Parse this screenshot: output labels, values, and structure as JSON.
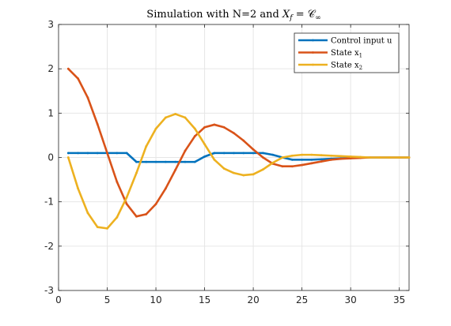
{
  "chart_data": {
    "type": "line",
    "title_prefix": "Simulation with N=2 and ",
    "title_math": "X",
    "title_math_sub": "f",
    "title_math_rest": " = 𝒞",
    "title_math_rest_sub": "∞",
    "xlabel": "",
    "ylabel": "",
    "xlim": [
      0,
      36
    ],
    "ylim": [
      -3,
      3
    ],
    "x_ticks": [
      0,
      5,
      10,
      15,
      20,
      25,
      30,
      35
    ],
    "y_ticks": [
      -3,
      -2,
      -1,
      0,
      1,
      2,
      3
    ],
    "grid": true,
    "legend_position": "top-right",
    "series": [
      {
        "name": "Control input u",
        "name_sub": "",
        "color": "#0072BD",
        "x": [
          1,
          2,
          3,
          4,
          5,
          6,
          7,
          8,
          9,
          10,
          11,
          12,
          13,
          14,
          15,
          16,
          17,
          18,
          19,
          20,
          21,
          22,
          23,
          24,
          25,
          26,
          27,
          28,
          29,
          30,
          31,
          32,
          33,
          34,
          35,
          36
        ],
        "y": [
          0.1,
          0.1,
          0.1,
          0.1,
          0.1,
          0.1,
          0.1,
          -0.1,
          -0.1,
          -0.1,
          -0.1,
          -0.1,
          -0.1,
          -0.1,
          0.02,
          0.1,
          0.1,
          0.1,
          0.1,
          0.1,
          0.1,
          0.06,
          0.0,
          -0.05,
          -0.05,
          -0.05,
          -0.04,
          -0.03,
          -0.02,
          -0.01,
          0.0,
          0.0,
          0.0,
          0.0,
          0.0,
          0.0
        ]
      },
      {
        "name": "State x",
        "name_sub": "1",
        "color": "#D95319",
        "x": [
          1,
          2,
          3,
          4,
          5,
          6,
          7,
          8,
          9,
          10,
          11,
          12,
          13,
          14,
          15,
          16,
          17,
          18,
          19,
          20,
          21,
          22,
          23,
          24,
          25,
          26,
          27,
          28,
          29,
          30,
          31,
          32,
          33,
          34,
          35,
          36
        ],
        "y": [
          2.0,
          1.78,
          1.35,
          0.75,
          0.1,
          -0.55,
          -1.05,
          -1.33,
          -1.28,
          -1.05,
          -0.7,
          -0.28,
          0.15,
          0.48,
          0.68,
          0.74,
          0.68,
          0.55,
          0.38,
          0.18,
          0.0,
          -0.14,
          -0.2,
          -0.2,
          -0.17,
          -0.13,
          -0.09,
          -0.05,
          -0.03,
          -0.02,
          -0.01,
          0.0,
          0.0,
          0.0,
          0.0,
          0.0
        ]
      },
      {
        "name": "State x",
        "name_sub": "2",
        "color": "#EDB120",
        "x": [
          1,
          2,
          3,
          4,
          5,
          6,
          7,
          8,
          9,
          10,
          11,
          12,
          13,
          14,
          15,
          16,
          17,
          18,
          19,
          20,
          21,
          22,
          23,
          24,
          25,
          26,
          27,
          28,
          29,
          30,
          31,
          32,
          33,
          34,
          35,
          36
        ],
        "y": [
          0.0,
          -0.7,
          -1.25,
          -1.57,
          -1.6,
          -1.35,
          -0.9,
          -0.35,
          0.25,
          0.65,
          0.9,
          0.98,
          0.9,
          0.65,
          0.3,
          -0.05,
          -0.25,
          -0.35,
          -0.4,
          -0.38,
          -0.27,
          -0.12,
          0.0,
          0.04,
          0.06,
          0.06,
          0.05,
          0.04,
          0.03,
          0.02,
          0.01,
          0.0,
          0.0,
          0.0,
          0.0,
          0.0
        ]
      }
    ]
  }
}
